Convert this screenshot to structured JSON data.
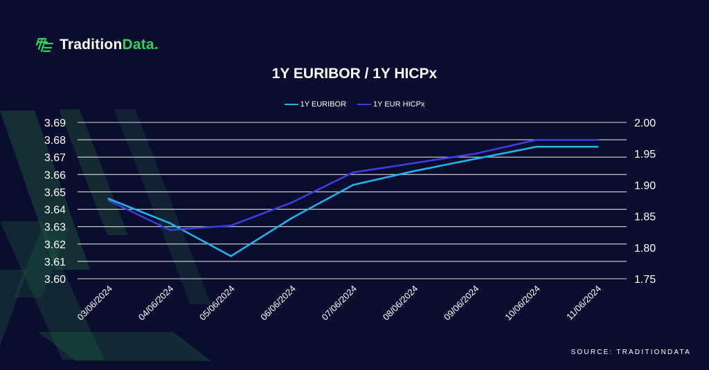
{
  "brand": {
    "name_main": "Tradition",
    "name_accent": "Data."
  },
  "source": "SOURCE: TRADITIONDATA",
  "colors": {
    "background": "#0b0d2e",
    "brand_green": "#2fd35c",
    "series_1": "#1fb5ea",
    "series_2": "#3a3fe0",
    "grid": "#ffffff"
  },
  "chart_data": {
    "type": "line",
    "title": "1Y EURIBOR / 1Y HICPx",
    "x": [
      "03/06/2024",
      "04/06/2024",
      "05/06/2024",
      "06/06/2024",
      "07/06/2024",
      "08/06/2024",
      "09/06/2024",
      "10/06/2024",
      "11/06/2024"
    ],
    "series": [
      {
        "name": "1Y EURIBOR",
        "axis": "left",
        "values": [
          3.646,
          3.632,
          3.613,
          3.635,
          3.654,
          3.662,
          3.669,
          3.676,
          3.676
        ]
      },
      {
        "name": "1Y EUR HICPx",
        "axis": "right",
        "values": [
          1.875,
          1.828,
          1.835,
          1.872,
          1.92,
          1.935,
          1.95,
          1.972,
          1.972
        ]
      }
    ],
    "yleft": {
      "ylim": [
        3.6,
        3.69
      ],
      "ticks": [
        "3.60",
        "3.61",
        "3.62",
        "3.63",
        "3.64",
        "3.65",
        "3.66",
        "3.67",
        "3.68",
        "3.69"
      ]
    },
    "yright": {
      "ylim": [
        1.75,
        2.0
      ],
      "ticks": [
        "1.75",
        "1.80",
        "1.85",
        "1.90",
        "1.95",
        "2.00"
      ]
    },
    "grid": true,
    "legend_position": "top-center"
  }
}
